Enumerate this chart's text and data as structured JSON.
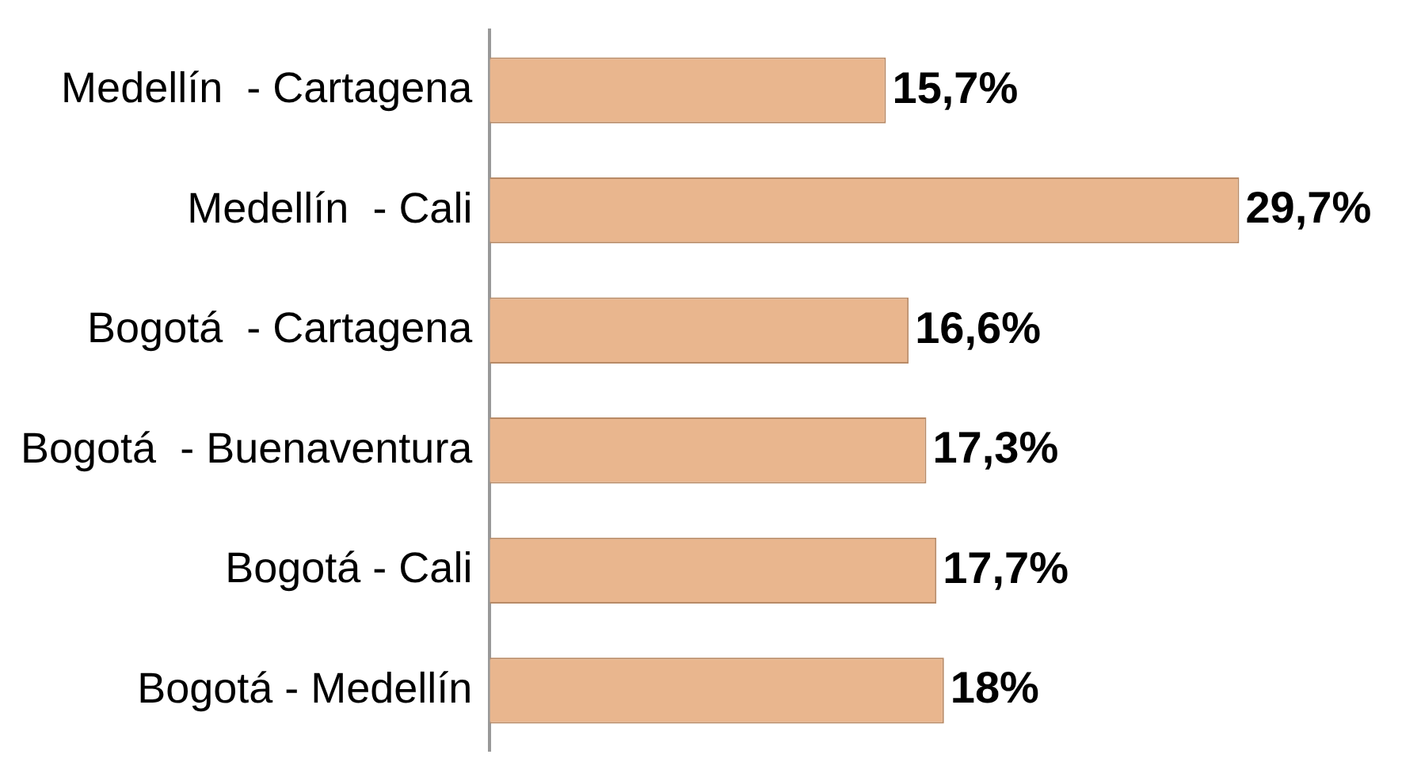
{
  "chart_data": {
    "type": "bar",
    "orientation": "horizontal",
    "categories": [
      "Medellín  - Cartagena",
      "Medellín  - Cali",
      "Bogotá  - Cartagena",
      "Bogotá  - Buenaventura",
      "Bogotá - Cali",
      "Bogotá - Medellín"
    ],
    "values": [
      15.7,
      29.7,
      16.6,
      17.3,
      17.7,
      18
    ],
    "value_labels": [
      "15,7%",
      "29,7%",
      "16,6%",
      "17,3%",
      "17,7%",
      "18%"
    ],
    "color": "#e9b68e",
    "grid": false,
    "legend": false
  }
}
